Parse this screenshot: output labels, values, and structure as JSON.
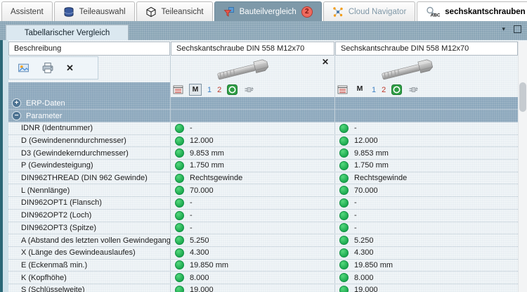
{
  "colors": {
    "accent_slate": "#8ca7bc",
    "status_green": "#1ca94f",
    "badge_red": "#ef6a5e",
    "teal_edge": "#2a6776",
    "active_tab": "#7e99a9"
  },
  "main_tabs": [
    {
      "label": "Assistent"
    },
    {
      "label": "Teileauswahl",
      "icon": "database-icon"
    },
    {
      "label": "Teileansicht",
      "icon": "cube-icon"
    },
    {
      "label": "Bauteilvergleich",
      "icon": "compare-icon",
      "badge": "2",
      "active": true
    },
    {
      "label": "Cloud Navigator",
      "icon": "network-icon"
    },
    {
      "label": "sechskantschrauben",
      "icon": "search-abc-icon",
      "type": "search-tab"
    }
  ],
  "new_tab_label": "+",
  "view_tab": {
    "label": "Tabellarischer Vergleich",
    "collapse_glyph": "▾"
  },
  "table": {
    "description_header": "Beschreibung",
    "toolbar": {
      "close_glyph": "✕"
    },
    "columns": [
      {
        "header": "Sechskantschraube DIN 558 M12x70",
        "close_glyph": "✕",
        "m_pressed": true
      },
      {
        "header": "Sechskantschraube DIN 558 M12x70",
        "m_pressed": false
      }
    ],
    "column_tools": {
      "m": "M",
      "view1": "1",
      "view2": "2"
    },
    "groups": [
      {
        "label": "ERP-Daten",
        "sign": "+",
        "expanded": false
      },
      {
        "label": "Parameter",
        "sign": "−",
        "expanded": true
      }
    ],
    "rows": [
      {
        "label": "IDNR (Identnummer)",
        "values": [
          "-",
          "-"
        ]
      },
      {
        "label": "D (Gewindenenndurchmesser)",
        "values": [
          "12.000",
          "12.000"
        ]
      },
      {
        "label": "D3 (Gewindekerndurchmesser)",
        "values": [
          "9.853 mm",
          "9.853 mm"
        ]
      },
      {
        "label": "P (Gewindesteigung)",
        "values": [
          "1.750 mm",
          "1.750 mm"
        ]
      },
      {
        "label": "DIN962THREAD (DIN 962 Gewinde)",
        "values": [
          "Rechtsgewinde",
          "Rechtsgewinde"
        ]
      },
      {
        "label": "L (Nennlänge)",
        "values": [
          "70.000",
          "70.000"
        ]
      },
      {
        "label": "DIN962OPT1 (Flansch)",
        "values": [
          "-",
          "-"
        ]
      },
      {
        "label": "DIN962OPT2 (Loch)",
        "values": [
          "-",
          "-"
        ]
      },
      {
        "label": "DIN962OPT3 (Spitze)",
        "values": [
          "-",
          "-"
        ]
      },
      {
        "label": "A (Abstand des letzten vollen Gewindeganges vo...",
        "values": [
          "5.250",
          "5.250"
        ]
      },
      {
        "label": "X (Länge des Gewindeauslaufes)",
        "values": [
          "4.300",
          "4.300"
        ]
      },
      {
        "label": "E (Eckenmaß  min.)",
        "values": [
          "19.850 mm",
          "19.850 mm"
        ]
      },
      {
        "label": "K (Kopfhöhe)",
        "values": [
          "8.000",
          "8.000"
        ]
      },
      {
        "label": "S (Schlüsselweite)",
        "values": [
          "19.000",
          "19.000"
        ]
      }
    ]
  }
}
